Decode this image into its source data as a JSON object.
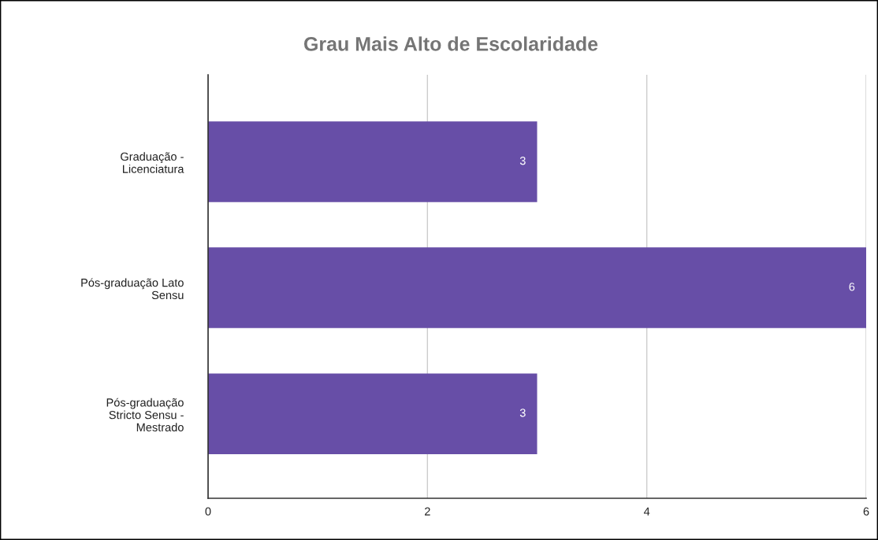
{
  "chart_data": {
    "type": "bar",
    "orientation": "horizontal",
    "title": "Grau Mais Alto de Escolaridade",
    "categories": [
      "Graduação -\nLicenciatura",
      "Pós-graduação Lato\nSensu",
      "Pós-graduação\nStricto Sensu -\nMestrado"
    ],
    "values": [
      3,
      6,
      3
    ],
    "color": "#674ea7",
    "xlim": [
      0,
      6
    ],
    "xticks": [
      0,
      2,
      4,
      6
    ],
    "grid": "x",
    "data_labels": true,
    "legend": false
  }
}
